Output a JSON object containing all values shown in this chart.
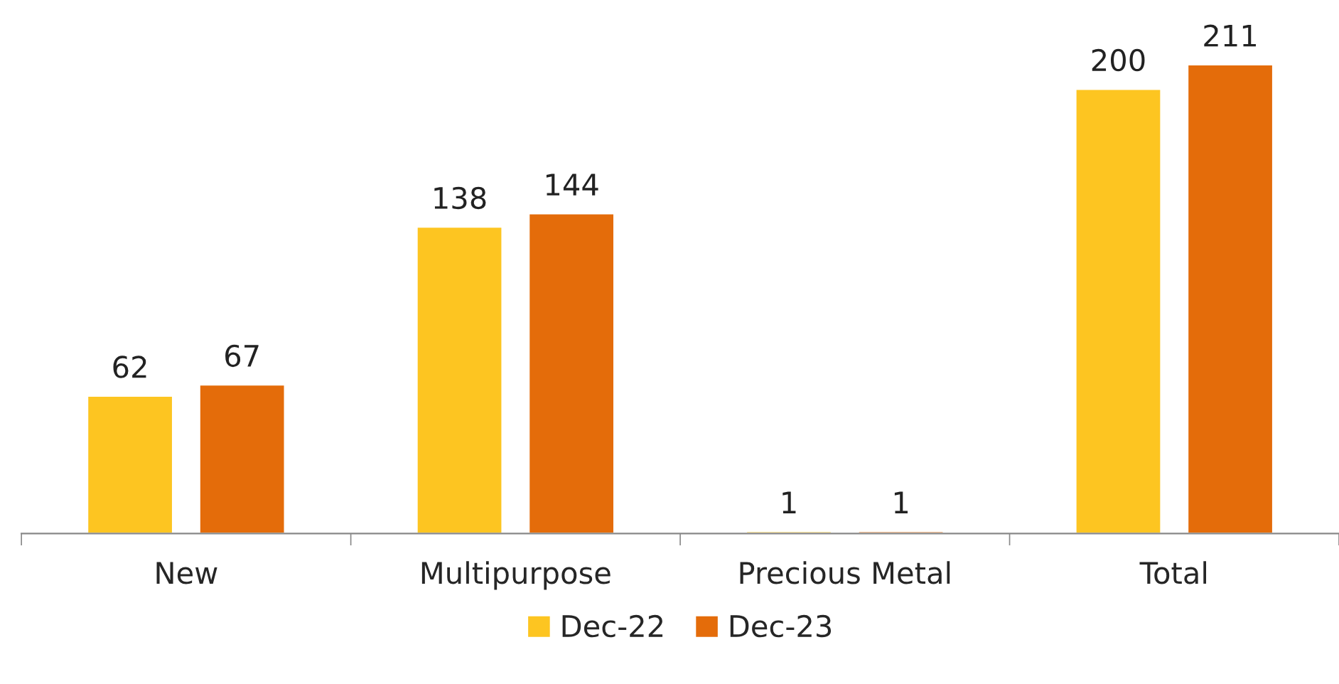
{
  "chart_data": {
    "type": "bar",
    "categories": [
      "New",
      "Multipurpose",
      "Precious Metal",
      "Total"
    ],
    "series": [
      {
        "name": "Dec-22",
        "color": "#fdc521",
        "values": [
          62,
          138,
          1,
          200
        ]
      },
      {
        "name": "Dec-23",
        "color": "#e46c0a",
        "values": [
          67,
          144,
          1,
          211
        ]
      }
    ],
    "data_labels": true,
    "legend": "bottom"
  }
}
